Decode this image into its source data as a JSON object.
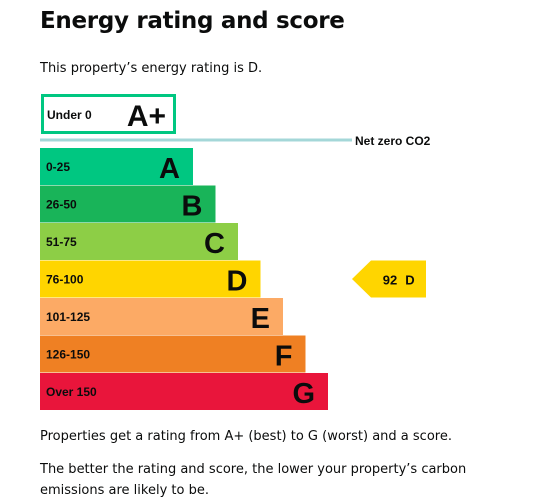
{
  "page": {
    "title": "Energy rating and score",
    "intro": "This property’s energy rating is D.",
    "footnote_1": "Properties get a rating from A+ (best) to G (worst) and a score.",
    "footnote_2": "The better the rating and score, the lower your property’s carbon emissions are likely to be."
  },
  "chart_data": {
    "type": "bar",
    "orientation": "horizontal",
    "net_zero_label": "Net zero CO2",
    "bands": [
      {
        "band": "A+",
        "range": "Under 0",
        "color": "#00c781",
        "outlined": true
      },
      {
        "band": "A",
        "range": "0-25",
        "color": "#00c781"
      },
      {
        "band": "B",
        "range": "26-50",
        "color": "#19b459"
      },
      {
        "band": "C",
        "range": "51-75",
        "color": "#8dce46"
      },
      {
        "band": "D",
        "range": "76-100",
        "color": "#ffd500"
      },
      {
        "band": "E",
        "range": "101-125",
        "color": "#fcaa65"
      },
      {
        "band": "F",
        "range": "126-150",
        "color": "#ef8023"
      },
      {
        "band": "G",
        "range": "Over 150",
        "color": "#e9153b"
      }
    ],
    "current": {
      "score": "92",
      "band": "D",
      "band_index": 4,
      "color": "#ffd500"
    },
    "colors": {
      "net_zero_line": "#a4d7d8",
      "text": "#0b0c0c"
    }
  }
}
